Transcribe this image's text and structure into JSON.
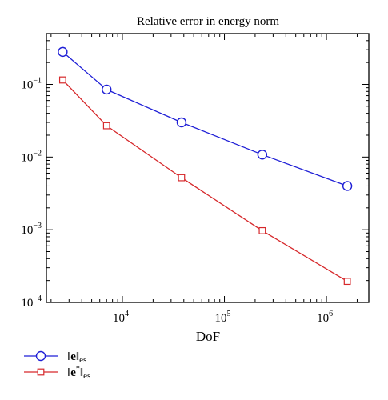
{
  "chart_data": {
    "type": "line",
    "title": "Relative error in energy norm",
    "xlabel": "DoF",
    "ylabel": "",
    "xscale": "log",
    "yscale": "log",
    "xlim": [
      1800,
      2600000
    ],
    "ylim": [
      0.0001,
      0.5
    ],
    "x_tick_labels": [
      {
        "base": "10",
        "exp": "4",
        "value": 10000
      },
      {
        "base": "10",
        "exp": "5",
        "value": 100000
      },
      {
        "base": "10",
        "exp": "6",
        "value": 1000000
      }
    ],
    "y_tick_labels": [
      {
        "base": "10",
        "exp": "−1",
        "value": 0.1
      },
      {
        "base": "10",
        "exp": "−2",
        "value": 0.01
      },
      {
        "base": "10",
        "exp": "−3",
        "value": 0.001
      },
      {
        "base": "10",
        "exp": "−4",
        "value": 0.0001
      }
    ],
    "grid": false,
    "legend_position": "bottom-left",
    "series": [
      {
        "name": "‖e‖es",
        "legend_main": "e",
        "legend_sup": "",
        "legend_sub": "es",
        "color": "#1f1fd6",
        "marker": "circle",
        "points": [
          {
            "x": 2600,
            "y": 0.28
          },
          {
            "x": 7000,
            "y": 0.085
          },
          {
            "x": 38000,
            "y": 0.03
          },
          {
            "x": 235000,
            "y": 0.0108
          },
          {
            "x": 1600000,
            "y": 0.004
          }
        ]
      },
      {
        "name": "‖e*‖es",
        "legend_main": "e",
        "legend_sup": "*",
        "legend_sub": "es",
        "color": "#d6282b",
        "marker": "square",
        "points": [
          {
            "x": 2600,
            "y": 0.115
          },
          {
            "x": 7000,
            "y": 0.027
          },
          {
            "x": 38000,
            "y": 0.0052
          },
          {
            "x": 235000,
            "y": 0.00097
          },
          {
            "x": 1600000,
            "y": 0.000195
          }
        ]
      }
    ]
  }
}
